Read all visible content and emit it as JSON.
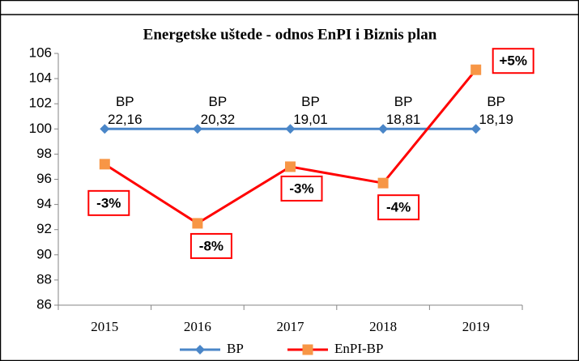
{
  "chart_data": {
    "type": "line",
    "title": "Energetske uštede - odnos EnPI i Biznis plan",
    "categories": [
      "2015",
      "2016",
      "2017",
      "2018",
      "2019"
    ],
    "ylim": [
      86,
      106
    ],
    "yticks": [
      86,
      88,
      90,
      92,
      94,
      96,
      98,
      100,
      102,
      104,
      106
    ],
    "series": [
      {
        "name": "BP",
        "color": "#4a86c8",
        "marker": "diamond",
        "values": [
          100,
          100,
          100,
          100,
          100
        ],
        "annotations": [
          [
            "BP",
            "22,16"
          ],
          [
            "BP",
            "20,32"
          ],
          [
            "BP",
            "19,01"
          ],
          [
            "BP",
            "18,81"
          ],
          [
            "BP",
            "18,19"
          ]
        ]
      },
      {
        "name": "EnPI-BP",
        "color": "#ff0000",
        "marker_color": "#f79646",
        "marker": "square",
        "values": [
          97.2,
          92.5,
          97.0,
          95.7,
          104.7
        ],
        "annotations": [
          "-3%",
          "-8%",
          "-3%",
          "-4%",
          "+5%"
        ]
      }
    ],
    "legend": "bottom"
  }
}
